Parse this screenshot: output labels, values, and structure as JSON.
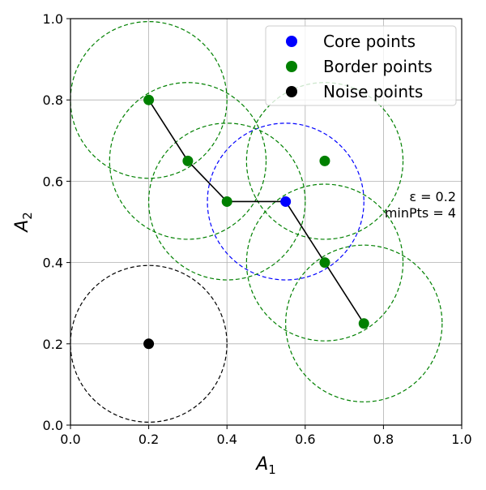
{
  "chart_data": {
    "type": "scatter",
    "title": "",
    "xlabel": "A",
    "xlabel_sub": "1",
    "ylabel": "A",
    "ylabel_sub": "2",
    "xlim": [
      0.0,
      1.0
    ],
    "ylim": [
      0.0,
      1.0
    ],
    "x_ticks": [
      0.0,
      0.2,
      0.4,
      0.6,
      0.8,
      1.0
    ],
    "y_ticks": [
      0.0,
      0.2,
      0.4,
      0.6,
      0.8,
      1.0
    ],
    "x_tick_labels": [
      "0.0",
      "0.2",
      "0.4",
      "0.6",
      "0.8",
      "1.0"
    ],
    "y_tick_labels": [
      "0.0",
      "0.2",
      "0.4",
      "0.6",
      "0.8",
      "1.0"
    ],
    "grid": true,
    "legend_position": "top-right",
    "epsilon": 0.2,
    "series": [
      {
        "name": "Core points",
        "color": "#0000ff",
        "points": [
          [
            0.55,
            0.55
          ]
        ]
      },
      {
        "name": "Border points",
        "color": "#008000",
        "points": [
          [
            0.2,
            0.8
          ],
          [
            0.3,
            0.65
          ],
          [
            0.4,
            0.55
          ],
          [
            0.65,
            0.65
          ],
          [
            0.65,
            0.4
          ],
          [
            0.75,
            0.25
          ]
        ]
      },
      {
        "name": "Noise points",
        "color": "#000000",
        "points": [
          [
            0.2,
            0.2
          ]
        ]
      }
    ],
    "connections": [
      [
        0.2,
        0.8
      ],
      [
        0.3,
        0.65
      ],
      [
        0.4,
        0.55
      ],
      [
        0.55,
        0.55
      ],
      [
        0.65,
        0.4
      ],
      [
        0.75,
        0.25
      ]
    ],
    "annotation_lines": [
      "ε = 0.2",
      "minPts = 4"
    ]
  }
}
